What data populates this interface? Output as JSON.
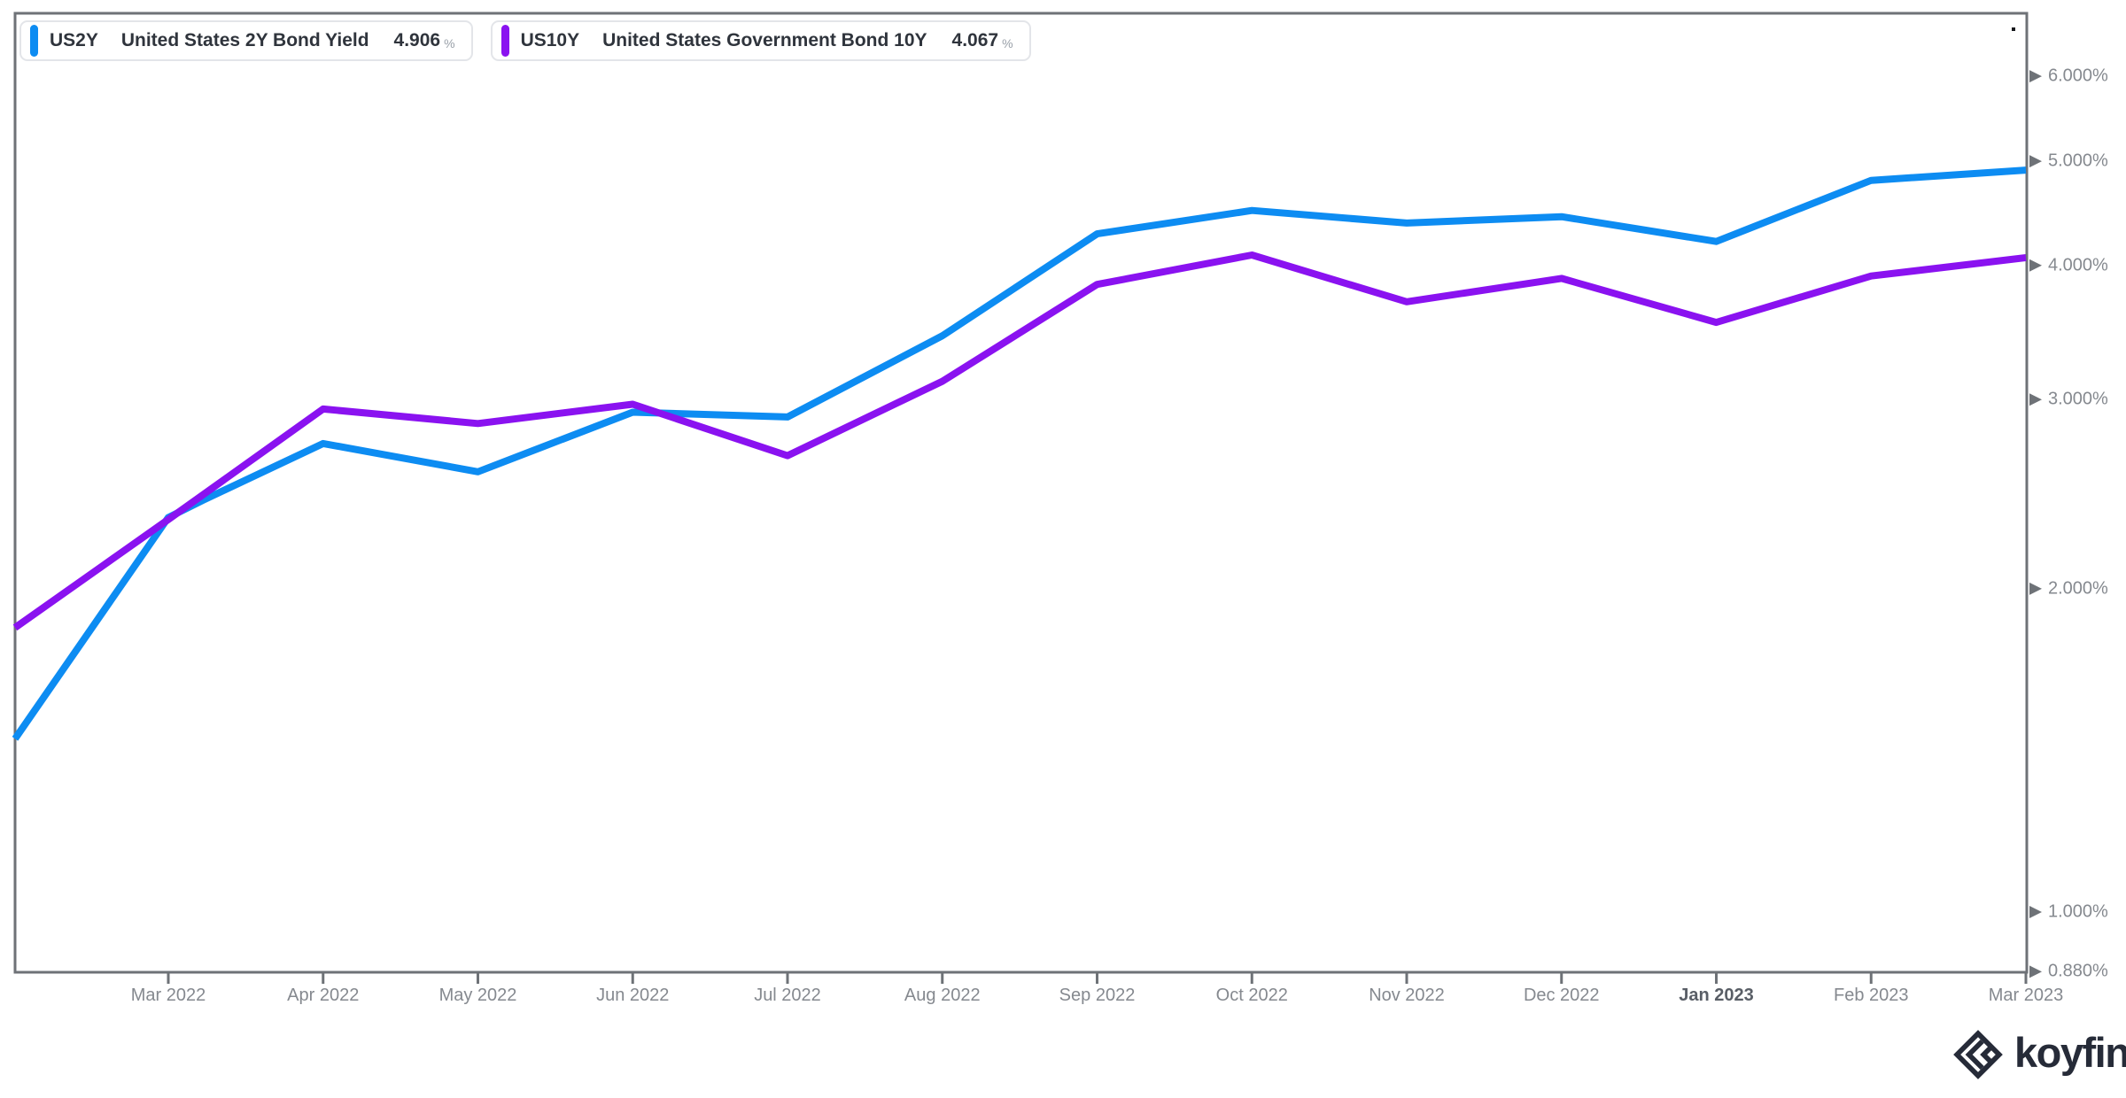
{
  "legend": [
    {
      "ticker": "US2Y",
      "name": "United States 2Y Bond Yield",
      "value": "4.906",
      "unit": "%",
      "color": "#0d8cf2"
    },
    {
      "ticker": "US10Y",
      "name": "United States Government Bond 10Y",
      "value": "4.067",
      "unit": "%",
      "color": "#8a12f0"
    }
  ],
  "chart_data": {
    "type": "line",
    "y_scale": "log",
    "grid": false,
    "legend_position": "top-left",
    "x_axis": {
      "tick_labels": [
        "Mar 2022",
        "Apr 2022",
        "May 2022",
        "Jun 2022",
        "Jul 2022",
        "Aug 2022",
        "Sep 2022",
        "Oct 2022",
        "Nov 2022",
        "Dec 2022",
        "Jan 2023",
        "Feb 2023",
        "Mar 2023"
      ],
      "bold_tick": "Jan 2023",
      "x_unit": "months_offset_from_Mar_2022"
    },
    "y_axis": {
      "tick_labels": [
        "6.000%",
        "5.000%",
        "4.000%",
        "3.000%",
        "2.000%",
        "1.000%",
        "0.880%"
      ],
      "tick_values": [
        6.0,
        5.0,
        4.0,
        3.0,
        2.0,
        1.0,
        0.88
      ],
      "range": [
        0.88,
        6.87
      ],
      "unit": "%",
      "side": "right"
    },
    "series": [
      {
        "id": "US2Y",
        "label": "United States 2Y Bond Yield",
        "color": "#0d8cf2",
        "last_value": 4.906,
        "points": [
          {
            "m": -0.99,
            "v": 1.45
          },
          {
            "m": 0,
            "v": 2.33
          },
          {
            "m": 0.23,
            "v": 2.42
          },
          {
            "m": 1,
            "v": 2.73
          },
          {
            "m": 2,
            "v": 2.57
          },
          {
            "m": 3,
            "v": 2.92
          },
          {
            "m": 4,
            "v": 2.89
          },
          {
            "m": 5,
            "v": 3.44
          },
          {
            "m": 6,
            "v": 4.28
          },
          {
            "m": 7,
            "v": 4.5
          },
          {
            "m": 8,
            "v": 4.38
          },
          {
            "m": 9,
            "v": 4.44
          },
          {
            "m": 10,
            "v": 4.21
          },
          {
            "m": 11,
            "v": 4.8
          },
          {
            "m": 12,
            "v": 4.906
          }
        ]
      },
      {
        "id": "US10Y",
        "label": "United States Government Bond 10Y",
        "color": "#8a12f0",
        "last_value": 4.067,
        "points": [
          {
            "m": -0.99,
            "v": 1.84
          },
          {
            "m": 0,
            "v": 2.32
          },
          {
            "m": 1,
            "v": 2.94
          },
          {
            "m": 2,
            "v": 2.85
          },
          {
            "m": 3,
            "v": 2.97
          },
          {
            "m": 4,
            "v": 2.66
          },
          {
            "m": 5,
            "v": 3.12
          },
          {
            "m": 6,
            "v": 3.84
          },
          {
            "m": 7,
            "v": 4.09
          },
          {
            "m": 8,
            "v": 3.7
          },
          {
            "m": 9,
            "v": 3.89
          },
          {
            "m": 10,
            "v": 3.54
          },
          {
            "m": 11,
            "v": 3.91
          },
          {
            "m": 12,
            "v": 4.067
          }
        ]
      }
    ],
    "colors": {
      "axis": "#6e7277",
      "tick_label": "#85898f",
      "bold_tick_label": "#595e66"
    }
  },
  "branding": {
    "logo_text": "koyfin"
  }
}
